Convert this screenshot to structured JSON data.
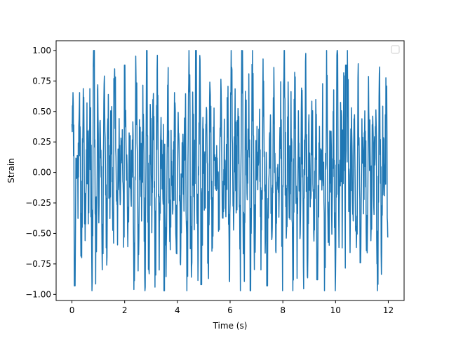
{
  "chart_data": {
    "type": "line",
    "title": "",
    "xlabel": "Time (s)",
    "ylabel": "Strain",
    "xlim": [
      -0.6,
      12.6
    ],
    "ylim": [
      -1.05,
      1.08
    ],
    "x_ticks": [
      0,
      2,
      4,
      6,
      8,
      10,
      12
    ],
    "y_ticks": [
      -1.0,
      -0.75,
      -0.5,
      -0.25,
      0.0,
      0.25,
      0.5,
      0.75,
      1.0
    ],
    "x_tick_labels": [
      "0",
      "2",
      "4",
      "6",
      "8",
      "10",
      "12"
    ],
    "y_tick_labels": [
      "−1.00",
      "−0.75",
      "−0.50",
      "−0.25",
      "0.00",
      "0.25",
      "0.50",
      "0.75",
      "1.00"
    ],
    "grid": false,
    "legend": {
      "placement": "top-right",
      "entries": []
    },
    "series": [
      {
        "color": "#1f77b4",
        "x_range": [
          0,
          12
        ],
        "sample_count": 1200,
        "y_range": [
          -0.97,
          1.0
        ],
        "peaks": [
          {
            "x": 0.1,
            "y": -0.93
          },
          {
            "x": 1.6,
            "y": 0.77
          },
          {
            "x": 2.0,
            "y": 0.88
          },
          {
            "x": 3.5,
            "y": -0.97
          },
          {
            "x": 4.7,
            "y": 1.0
          },
          {
            "x": 4.9,
            "y": -0.92
          },
          {
            "x": 7.4,
            "y": -0.93
          },
          {
            "x": 9.3,
            "y": -0.88
          },
          {
            "x": 10.4,
            "y": 0.88
          },
          {
            "x": 12.0,
            "y": -0.53
          }
        ]
      }
    ]
  }
}
